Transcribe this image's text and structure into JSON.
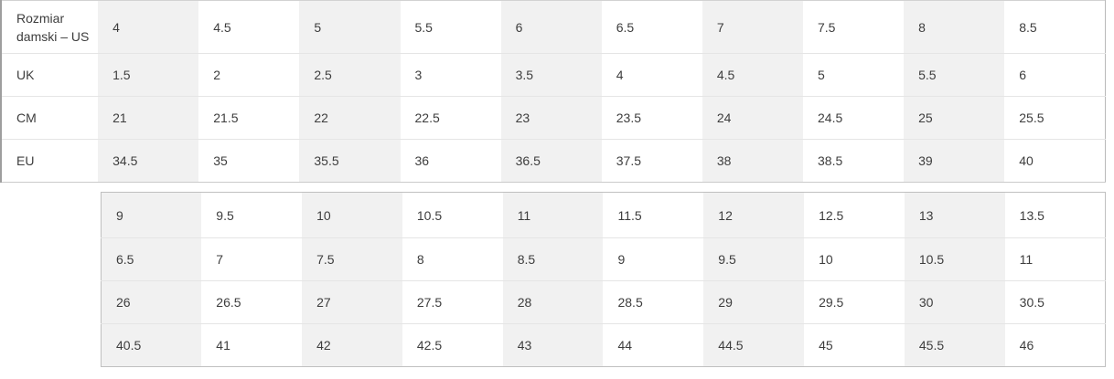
{
  "colors": {
    "shaded_cell": "#f1f1f1",
    "row_divider": "#e5e5e5",
    "text": "#3d3d3d"
  },
  "size_table_top": {
    "rows": [
      {
        "label": "Rozmiar damski – US",
        "values": [
          "4",
          "4.5",
          "5",
          "5.5",
          "6",
          "6.5",
          "7",
          "7.5",
          "8",
          "8.5"
        ]
      },
      {
        "label": "UK",
        "values": [
          "1.5",
          "2",
          "2.5",
          "3",
          "3.5",
          "4",
          "4.5",
          "5",
          "5.5",
          "6"
        ]
      },
      {
        "label": "CM",
        "values": [
          "21",
          "21.5",
          "22",
          "22.5",
          "23",
          "23.5",
          "24",
          "24.5",
          "25",
          "25.5"
        ]
      },
      {
        "label": "EU",
        "values": [
          "34.5",
          "35",
          "35.5",
          "36",
          "36.5",
          "37.5",
          "38",
          "38.5",
          "39",
          "40"
        ]
      }
    ]
  },
  "size_table_bottom": {
    "rows": [
      {
        "values": [
          "9",
          "9.5",
          "10",
          "10.5",
          "11",
          "11.5",
          "12",
          "12.5",
          "13",
          "13.5"
        ]
      },
      {
        "values": [
          "6.5",
          "7",
          "7.5",
          "8",
          "8.5",
          "9",
          "9.5",
          "10",
          "10.5",
          "11"
        ]
      },
      {
        "values": [
          "26",
          "26.5",
          "27",
          "27.5",
          "28",
          "28.5",
          "29",
          "29.5",
          "30",
          "30.5"
        ]
      },
      {
        "values": [
          "40.5",
          "41",
          "42",
          "42.5",
          "43",
          "44",
          "44.5",
          "45",
          "45.5",
          "46"
        ]
      }
    ]
  }
}
